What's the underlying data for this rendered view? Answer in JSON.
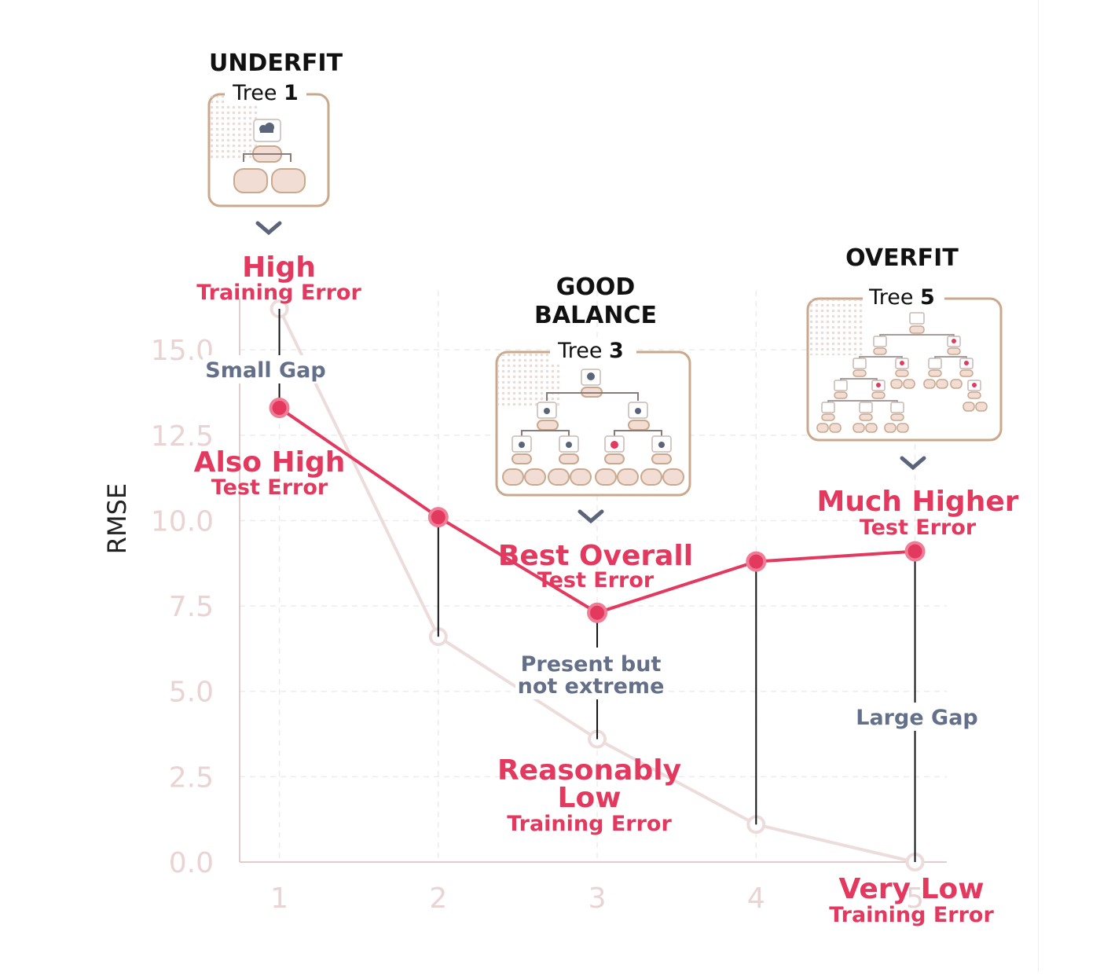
{
  "chart_data": {
    "type": "line",
    "x": [
      1,
      2,
      3,
      4,
      5
    ],
    "ylabel": "RMSE",
    "xlabel": "",
    "ylim": [
      0,
      16.5
    ],
    "xlim": [
      0.75,
      5.2
    ],
    "x_ticks": [
      "1",
      "2",
      "3",
      "4",
      "5"
    ],
    "y_ticks": [
      "0.0",
      "2.5",
      "5.0",
      "7.5",
      "10.0",
      "12.5",
      "15.0"
    ],
    "grid": true,
    "series": [
      {
        "name": "",
        "role": "training",
        "color": "#ecdcdc",
        "values": [
          16.2,
          6.6,
          3.6,
          1.1,
          0.0
        ]
      },
      {
        "name": "",
        "role": "test",
        "color": "#e3395f",
        "values": [
          13.3,
          10.1,
          7.3,
          8.8,
          9.1
        ]
      }
    ],
    "gap_lines": [
      1,
      2,
      3,
      4,
      5
    ],
    "annotations": {
      "phase_underfit": "UNDERFIT",
      "phase_good_1": "GOOD",
      "phase_good_2": "BALANCE",
      "phase_overfit": "OVERFIT",
      "tree_word": "Tree",
      "tree_1": "1",
      "tree_3": "3",
      "tree_5": "5",
      "high": "High",
      "high_sub": "Training Error",
      "small_gap": "Small Gap",
      "also_high": "Also High",
      "also_high_sub": "Test Error",
      "best_overall": "Best Overall",
      "best_overall_sub": "Test Error",
      "present_1": "Present but",
      "present_2": "not extreme",
      "reasonably": "Reasonably",
      "low": "Low",
      "reasonably_sub": "Training Error",
      "much_higher": "Much Higher",
      "much_higher_sub": "Test Error",
      "large_gap": "Large Gap",
      "very_low": "Very Low",
      "very_low_sub": "Training Error"
    }
  },
  "colors": {
    "test": "#e3395f",
    "training": "#ecdcdc",
    "gap_text": "#647089",
    "card_border": "#c9a88e",
    "chevron": "#5b6478"
  },
  "icons": [
    "cloud-rain-icon",
    "water-drop-icon",
    "sun-icon",
    "tree-diagram-icon",
    "chevron-down-icon"
  ]
}
